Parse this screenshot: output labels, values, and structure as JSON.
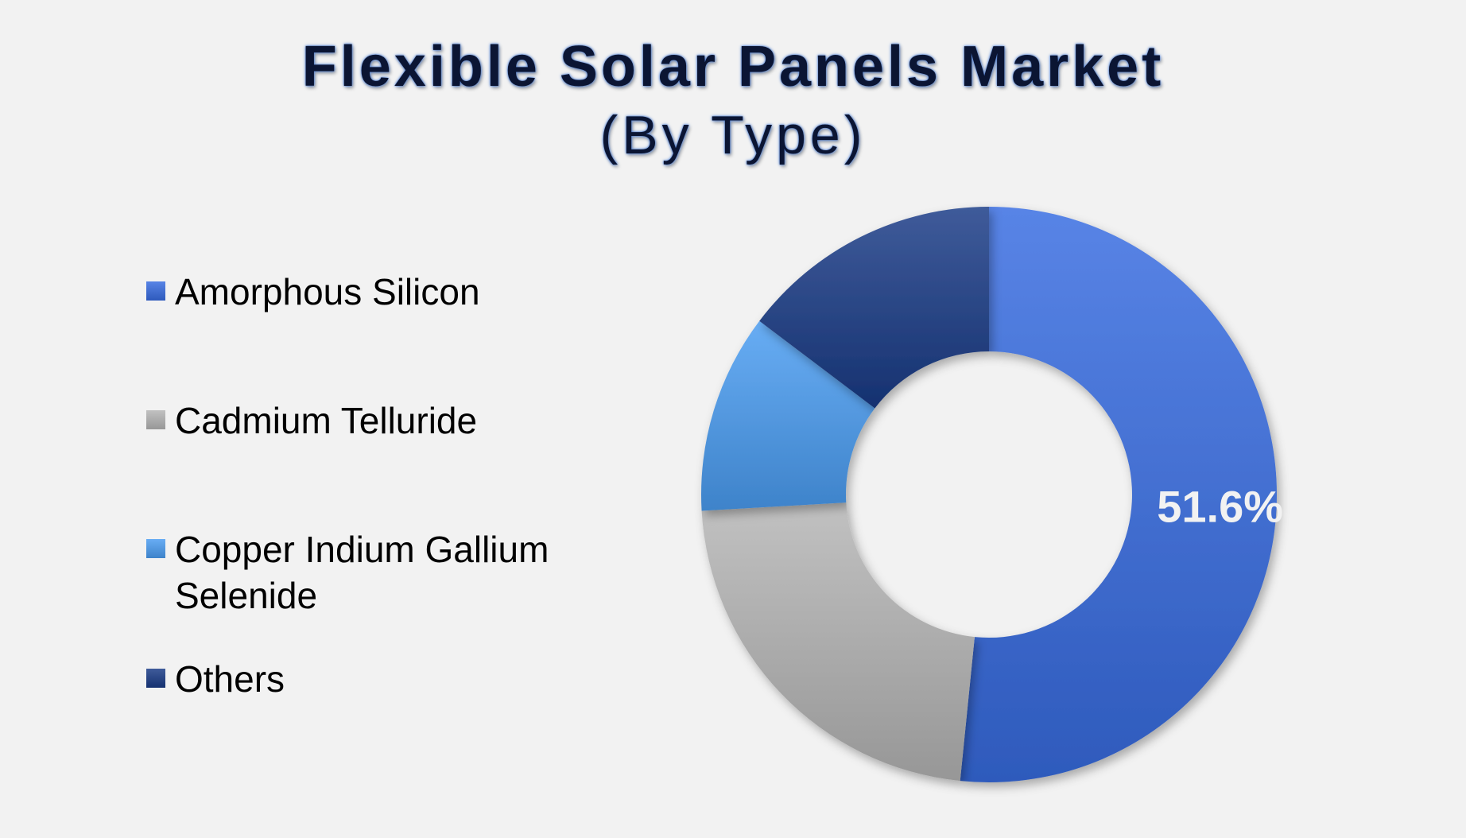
{
  "header": {
    "title": "Flexible Solar Panels Market",
    "subtitle": "(By Type)"
  },
  "chart_data": {
    "type": "pie",
    "style": "donut",
    "legend_position": "left",
    "categories": [
      "Amorphous Silicon",
      "Cadmium Telluride",
      "Copper Indium Gallium Selenide",
      "Others"
    ],
    "values": [
      51.6,
      22.5,
      11.2,
      14.7
    ],
    "colors": [
      "#3a66c8",
      "#a3a3a3",
      "#4a8fd6",
      "#213d7c"
    ],
    "data_labels": [
      "51.6%",
      "",
      "",
      ""
    ]
  }
}
